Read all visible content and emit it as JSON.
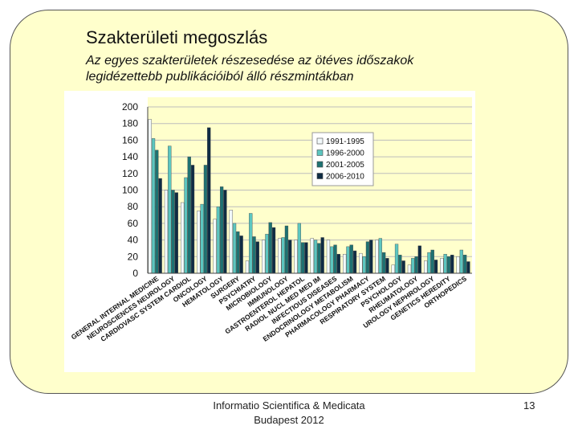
{
  "slide": {
    "title": "Szakterületi megoszlás",
    "subtitle_line1": "Az egyes szakterületek részesedése az ötéves időszakok",
    "subtitle_line2": "legidézettebb publikációiból álló részmintákban",
    "footer_line1": "Informatio Scientifica & Medicata",
    "footer_line2": "Budapest 2012",
    "page_number": "13"
  },
  "chart_data": {
    "type": "bar",
    "title": "",
    "xlabel": "",
    "ylabel": "",
    "ylim": [
      0,
      200
    ],
    "yticks": [
      0,
      20,
      40,
      60,
      80,
      100,
      120,
      140,
      160,
      180,
      200
    ],
    "grid": true,
    "legend_position": "top-right-inside",
    "categories": [
      "GENERAL INTERNAL MEDICINE",
      "NEUROSCIENCES NEUROLOGY",
      "CARDIOVASC SYSTEM CARDIOL",
      "ONCOLOGY",
      "HEMATOLOGY",
      "SURGERY",
      "PSYCHIATRY",
      "MICROBIOLOGY",
      "IMMUNOLOGY",
      "GASTROENTEROL HEPATOL",
      "RADIOL NUCL MED MED IM",
      "INFECTIOUS DISEASES",
      "ENDOCRINOLOGY METABOLISM",
      "PHARMACOLOGY PHARMACY",
      "RESPIRATORY SYSTEM",
      "PSYCHOLOGY",
      "RHEUMATOLOGY",
      "UROLOGY NEPHROLOGY",
      "GENETICS HEREDITY",
      "ORTHOPEDICS"
    ],
    "series": [
      {
        "name": "1991-1995",
        "color": "#f2f9fb",
        "values": [
          185,
          100,
          85,
          75,
          65,
          76,
          15,
          40,
          42,
          40,
          42,
          40,
          23,
          24,
          40,
          10,
          10,
          15,
          18,
          20
        ]
      },
      {
        "name": "1996-2000",
        "color": "#5cc6c0",
        "values": [
          162,
          153,
          115,
          83,
          80,
          60,
          72,
          47,
          43,
          60,
          40,
          32,
          32,
          20,
          42,
          35,
          18,
          25,
          23,
          28
        ]
      },
      {
        "name": "2001-2005",
        "color": "#1e7272",
        "values": [
          148,
          100,
          140,
          130,
          104,
          50,
          44,
          61,
          57,
          37,
          36,
          34,
          34,
          38,
          25,
          22,
          20,
          28,
          20,
          22
        ]
      },
      {
        "name": "2006-2010",
        "color": "#0f2c44",
        "values": [
          114,
          97,
          130,
          175,
          100,
          45,
          38,
          55,
          40,
          37,
          43,
          23,
          27,
          40,
          18,
          15,
          33,
          16,
          22,
          14
        ]
      }
    ]
  }
}
